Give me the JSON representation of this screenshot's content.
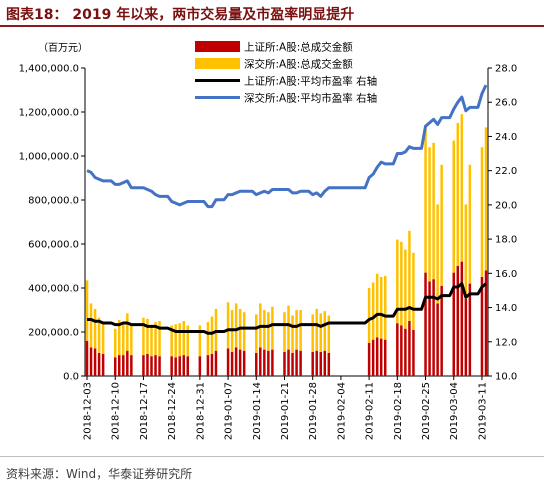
{
  "title": "图表18： 2019 年以来，两市交易量及市盈率明显提升",
  "source": "资料来源：Wind，华泰证券研究所",
  "colors": {
    "sh_volume": "#c00000",
    "sz_volume": "#ffc000",
    "sh_pe": "#000000",
    "sz_pe": "#4472c4",
    "title": "#7a1010"
  },
  "chart_data": {
    "type": "bar",
    "left_axis_unit": "（百万元）",
    "yleft_lim": [
      0,
      1400000
    ],
    "yleft_ticks": [
      "0.0",
      "200,000.0",
      "400,000.0",
      "600,000.0",
      "800,000.0",
      "1,000,000.0",
      "1,200,000.0",
      "1,400,000.0"
    ],
    "yleft_tick_values": [
      0,
      200000,
      400000,
      600000,
      800000,
      1000000,
      1200000,
      1400000
    ],
    "yright_lim": [
      10,
      28
    ],
    "yright_ticks": [
      "10.0",
      "12.0",
      "14.0",
      "16.0",
      "18.0",
      "20.0",
      "22.0",
      "24.0",
      "26.0",
      "28.0"
    ],
    "yright_tick_values": [
      10,
      12,
      14,
      16,
      18,
      20,
      22,
      24,
      26,
      28
    ],
    "x_tick_labels": [
      "2018-12-03",
      "2018-12-10",
      "2018-12-17",
      "2018-12-24",
      "2018-12-31",
      "2019-01-07",
      "2019-01-14",
      "2019-01-21",
      "2019-01-28",
      "2019-02-04",
      "2019-02-11",
      "2019-02-18",
      "2019-02-25",
      "2019-03-04",
      "2019-03-11"
    ],
    "legend": [
      "上证所:A股:总成交金额",
      "深交所:A股:总成交金额",
      "上证所:A股:平均市盈率  右轴",
      "深交所:A股:平均市盈率  右轴"
    ],
    "legend_position": "top-center",
    "grid": false,
    "x": [
      "2018-12-03",
      "2018-12-04",
      "2018-12-05",
      "2018-12-06",
      "2018-12-07",
      "2018-12-08",
      "2018-12-09",
      "2018-12-10",
      "2018-12-11",
      "2018-12-12",
      "2018-12-13",
      "2018-12-14",
      "2018-12-15",
      "2018-12-16",
      "2018-12-17",
      "2018-12-18",
      "2018-12-19",
      "2018-12-20",
      "2018-12-21",
      "2018-12-22",
      "2018-12-23",
      "2018-12-24",
      "2018-12-25",
      "2018-12-26",
      "2018-12-27",
      "2018-12-28",
      "2018-12-29",
      "2018-12-30",
      "2018-12-31",
      "2019-01-01",
      "2019-01-02",
      "2019-01-03",
      "2019-01-04",
      "2019-01-05",
      "2019-01-06",
      "2019-01-07",
      "2019-01-08",
      "2019-01-09",
      "2019-01-10",
      "2019-01-11",
      "2019-01-12",
      "2019-01-13",
      "2019-01-14",
      "2019-01-15",
      "2019-01-16",
      "2019-01-17",
      "2019-01-18",
      "2019-01-19",
      "2019-01-20",
      "2019-01-21",
      "2019-01-22",
      "2019-01-23",
      "2019-01-24",
      "2019-01-25",
      "2019-01-26",
      "2019-01-27",
      "2019-01-28",
      "2019-01-29",
      "2019-01-30",
      "2019-01-31",
      "2019-02-01",
      "2019-02-02",
      "2019-02-03",
      "2019-02-04",
      "2019-02-05",
      "2019-02-06",
      "2019-02-07",
      "2019-02-08",
      "2019-02-09",
      "2019-02-10",
      "2019-02-11",
      "2019-02-12",
      "2019-02-13",
      "2019-02-14",
      "2019-02-15",
      "2019-02-16",
      "2019-02-17",
      "2019-02-18",
      "2019-02-19",
      "2019-02-20",
      "2019-02-21",
      "2019-02-22",
      "2019-02-23",
      "2019-02-24",
      "2019-02-25",
      "2019-02-26",
      "2019-02-27",
      "2019-02-28",
      "2019-03-01",
      "2019-03-02",
      "2019-03-03",
      "2019-03-04",
      "2019-03-05",
      "2019-03-06",
      "2019-03-07",
      "2019-03-08",
      "2019-03-09",
      "2019-03-10",
      "2019-03-11",
      "2019-03-12"
    ],
    "series": [
      {
        "name": "上证所:A股:总成交金额",
        "kind": "bar",
        "axis": "left",
        "values": [
          160000,
          130000,
          125000,
          105000,
          100000,
          null,
          null,
          85000,
          95000,
          95000,
          115000,
          95000,
          null,
          null,
          95000,
          100000,
          90000,
          95000,
          90000,
          null,
          null,
          90000,
          85000,
          90000,
          95000,
          90000,
          null,
          null,
          90000,
          null,
          95000,
          100000,
          115000,
          null,
          null,
          125000,
          110000,
          130000,
          120000,
          115000,
          null,
          null,
          105000,
          130000,
          120000,
          115000,
          120000,
          null,
          null,
          110000,
          120000,
          105000,
          120000,
          115000,
          null,
          null,
          110000,
          115000,
          110000,
          115000,
          105000,
          null,
          null,
          null,
          null,
          null,
          null,
          null,
          null,
          null,
          150000,
          165000,
          175000,
          170000,
          165000,
          null,
          null,
          240000,
          230000,
          215000,
          250000,
          210000,
          null,
          null,
          470000,
          430000,
          440000,
          330000,
          410000,
          null,
          null,
          470000,
          500000,
          520000,
          350000,
          420000,
          null,
          null,
          450000,
          480000
        ]
      },
      {
        "name": "深交所:A股:总成交金额",
        "kind": "bar",
        "axis": "left",
        "values": [
          275000,
          200000,
          180000,
          160000,
          145000,
          null,
          null,
          130000,
          160000,
          150000,
          170000,
          140000,
          null,
          null,
          170000,
          160000,
          140000,
          150000,
          160000,
          null,
          null,
          140000,
          150000,
          150000,
          155000,
          140000,
          null,
          null,
          140000,
          null,
          150000,
          170000,
          190000,
          null,
          null,
          210000,
          190000,
          200000,
          185000,
          175000,
          null,
          null,
          175000,
          200000,
          180000,
          175000,
          195000,
          null,
          null,
          180000,
          200000,
          170000,
          180000,
          185000,
          null,
          null,
          170000,
          190000,
          175000,
          180000,
          170000,
          null,
          null,
          null,
          null,
          null,
          null,
          null,
          null,
          null,
          250000,
          260000,
          290000,
          280000,
          290000,
          null,
          null,
          380000,
          380000,
          360000,
          410000,
          350000,
          null,
          null,
          650000,
          610000,
          620000,
          450000,
          550000,
          null,
          null,
          600000,
          650000,
          670000,
          430000,
          540000,
          null,
          null,
          590000,
          650000
        ]
      },
      {
        "name": "上证所:A股:平均市盈率  右轴",
        "kind": "line",
        "axis": "right",
        "values": [
          13.3,
          13.3,
          13.2,
          13.2,
          13.1,
          13.1,
          13.1,
          13.0,
          13.0,
          13.1,
          13.1,
          13.0,
          13.0,
          13.0,
          13.0,
          12.9,
          12.9,
          12.9,
          12.8,
          12.8,
          12.8,
          12.7,
          12.6,
          12.6,
          12.6,
          12.6,
          12.6,
          12.6,
          12.6,
          12.6,
          12.5,
          12.5,
          12.6,
          12.6,
          12.6,
          12.7,
          12.7,
          12.7,
          12.8,
          12.8,
          12.8,
          12.8,
          12.8,
          12.9,
          12.9,
          12.9,
          13.0,
          13.0,
          13.0,
          13.0,
          13.0,
          12.9,
          12.9,
          13.0,
          13.0,
          13.0,
          13.0,
          13.0,
          12.9,
          13.0,
          13.1,
          13.1,
          13.1,
          13.1,
          13.1,
          13.1,
          13.1,
          13.1,
          13.1,
          13.1,
          13.3,
          13.4,
          13.6,
          13.6,
          13.5,
          13.5,
          13.5,
          13.9,
          13.9,
          13.9,
          14.0,
          13.9,
          13.9,
          13.9,
          14.6,
          14.6,
          14.6,
          14.5,
          14.7,
          14.7,
          14.7,
          15.2,
          15.2,
          15.4,
          14.6,
          14.8,
          14.8,
          14.8,
          15.2,
          15.4
        ]
      },
      {
        "name": "深交所:A股:平均市盈率  右轴",
        "kind": "line",
        "axis": "right",
        "values": [
          22.0,
          21.9,
          21.6,
          21.5,
          21.4,
          21.4,
          21.4,
          21.2,
          21.2,
          21.3,
          21.4,
          21.0,
          21.0,
          21.0,
          21.0,
          20.9,
          20.8,
          20.6,
          20.5,
          20.5,
          20.5,
          20.2,
          20.1,
          20.0,
          20.1,
          20.2,
          20.2,
          20.2,
          20.2,
          20.2,
          19.9,
          19.9,
          20.3,
          20.3,
          20.3,
          20.6,
          20.6,
          20.7,
          20.8,
          20.8,
          20.8,
          20.8,
          20.6,
          20.7,
          20.8,
          20.7,
          20.9,
          20.9,
          20.9,
          20.9,
          20.9,
          20.7,
          20.7,
          20.8,
          20.8,
          20.8,
          20.6,
          20.7,
          20.5,
          20.8,
          21.0,
          21.0,
          21.0,
          21.0,
          21.0,
          21.0,
          21.0,
          21.0,
          21.0,
          21.0,
          21.6,
          21.8,
          22.2,
          22.5,
          22.4,
          22.4,
          22.4,
          23.0,
          23.0,
          23.1,
          23.4,
          23.3,
          23.3,
          23.3,
          24.6,
          24.8,
          25.0,
          24.7,
          25.1,
          25.1,
          25.1,
          25.6,
          26.0,
          26.3,
          25.5,
          25.7,
          25.7,
          25.7,
          26.5,
          27.0
        ]
      }
    ]
  }
}
